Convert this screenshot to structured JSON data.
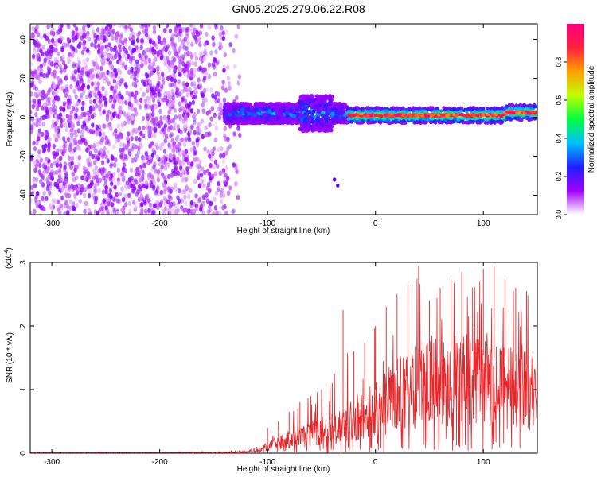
{
  "title": "GN05.2025.279.06.22.R08",
  "colors": {
    "snr_line": "#e8262a",
    "axis": "#000000",
    "scatter_purple": "#6a00e8"
  },
  "chart_data": [
    {
      "type": "heatmap",
      "xlabel": "Height of straight line (km)",
      "ylabel": "Frequency (Hz)",
      "xlim": [
        -320,
        150
      ],
      "ylim": [
        -50,
        48
      ],
      "xticks": [
        -300,
        -200,
        -100,
        0,
        100
      ],
      "yticks": [
        -40,
        -20,
        0,
        20,
        40
      ],
      "colorbar": {
        "label": "Normalized spectral amplitude",
        "range": [
          0,
          1
        ],
        "ticks": [
          "0.0",
          "0.2",
          "0.4",
          "0.6",
          "0.8"
        ],
        "colormap": [
          "#ffffff",
          "#a000ff",
          "#2020ff",
          "#00c0ff",
          "#00ff40",
          "#c0ff00",
          "#ffa000",
          "#ff2040",
          "#ff0080"
        ]
      },
      "regions": [
        {
          "x_range": [
            -320,
            -125
          ],
          "freq_range": [
            -50,
            48
          ],
          "amplitude": 0.1,
          "pattern": "noise"
        },
        {
          "x_range": [
            -140,
            -25
          ],
          "freq_range": [
            -8,
            10
          ],
          "amplitude": 0.35,
          "pattern": "broad band"
        },
        {
          "x_range": [
            -25,
            150
          ],
          "freq_center": 1,
          "freq_width": 4,
          "amplitude": 0.9,
          "pattern": "narrow band"
        }
      ],
      "isolated_points": [
        [
          -38,
          -32
        ],
        [
          -35,
          -35
        ]
      ]
    },
    {
      "type": "line",
      "xlabel": "Height of straight line (km)",
      "ylabel": "SNR (10 * v/v)",
      "y_multiplier": "(x10",
      "y_multiplier_exp": "4",
      "xlim": [
        -320,
        150
      ],
      "ylim": [
        0,
        3
      ],
      "xticks": [
        -300,
        -200,
        -100,
        0,
        100
      ],
      "yticks": [
        0,
        1,
        2,
        3
      ],
      "series": [
        {
          "x": [
            -320,
            -200,
            -130,
            -110,
            -100,
            -90,
            -80,
            -70,
            -60,
            -50,
            -40,
            -30,
            -20,
            -10,
            0,
            10,
            20,
            30,
            40,
            50,
            60,
            70,
            80,
            90,
            100,
            110,
            120,
            130,
            140,
            150
          ],
          "y": [
            0.01,
            0.01,
            0.02,
            0.05,
            0.15,
            0.25,
            0.3,
            0.35,
            0.42,
            0.5,
            0.55,
            0.62,
            0.75,
            0.85,
            1.0,
            1.15,
            1.3,
            1.45,
            1.55,
            1.6,
            1.55,
            1.6,
            1.65,
            1.6,
            1.55,
            1.5,
            1.5,
            1.45,
            1.4,
            1.35
          ],
          "ymax": [
            0.02,
            0.02,
            0.04,
            0.1,
            0.4,
            0.5,
            0.65,
            0.8,
            0.9,
            1.0,
            1.1,
            2.25,
            1.6,
            1.75,
            2.0,
            2.3,
            2.5,
            2.65,
            2.95,
            2.4,
            2.6,
            2.75,
            2.85,
            2.6,
            2.9,
            2.95,
            2.75,
            2.6,
            2.55,
            2.45
          ]
        }
      ]
    }
  ]
}
